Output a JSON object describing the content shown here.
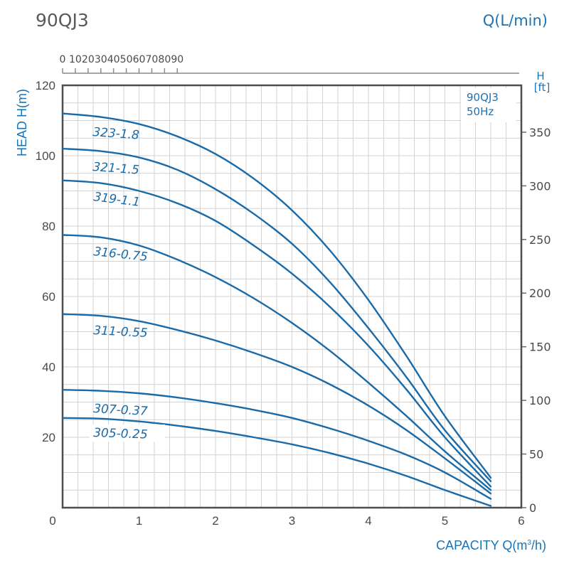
{
  "chart_data": {
    "type": "line",
    "title": "90QJ3",
    "subtitle_box": [
      "90QJ3",
      "50Hz"
    ],
    "xlabel": "CAPACITY Q(m³/h)",
    "xlabel_parts": {
      "main": "CAPACITY Q(m",
      "sup": "3",
      "end": "/h)"
    },
    "ylabel": "HEAD H(m)",
    "x2label": "Q(L/min)",
    "y2label": [
      "H",
      "[ft]"
    ],
    "xlim": [
      0,
      6
    ],
    "ylim": [
      0,
      120
    ],
    "x2lim": [
      0,
      100
    ],
    "y2lim": [
      0,
      393.7
    ],
    "x_ticks": [
      "0",
      "1",
      "2",
      "3",
      "4",
      "5",
      "6"
    ],
    "y_ticks": [
      "20",
      "40",
      "60",
      "80",
      "100",
      "120"
    ],
    "x2_ticks": [
      "0",
      "10",
      "20",
      "30",
      "40",
      "50",
      "60",
      "70",
      "80",
      "90"
    ],
    "y2_ticks": [
      "0",
      "50",
      "100",
      "150",
      "200",
      "250",
      "300",
      "350"
    ],
    "grid": true,
    "x": [
      0,
      0.5,
      1,
      1.5,
      2,
      2.5,
      3,
      3.5,
      4,
      4.5,
      5,
      5.6
    ],
    "series": [
      {
        "name": "323-1.8",
        "values": [
          112,
          111,
          109,
          105.5,
          100.5,
          93.5,
          84.5,
          73,
          59,
          43,
          26,
          8.5
        ]
      },
      {
        "name": "321-1.5",
        "values": [
          102,
          101.3,
          99.5,
          96,
          90.5,
          83.5,
          75,
          64,
          51,
          37,
          22,
          7.5
        ]
      },
      {
        "name": "319-1.1",
        "values": [
          93,
          92.2,
          90,
          86.5,
          81.5,
          74.5,
          66.5,
          57,
          46,
          33.5,
          20,
          6
        ]
      },
      {
        "name": "316-0.75",
        "values": [
          77.5,
          76.8,
          74.5,
          70.5,
          65.5,
          59.5,
          52.5,
          44.5,
          35.5,
          26,
          16,
          5
        ]
      },
      {
        "name": "311-0.55",
        "values": [
          55,
          54.5,
          53,
          50.5,
          47.5,
          44,
          40,
          35,
          29,
          22,
          14,
          4
        ]
      },
      {
        "name": "307-0.37",
        "values": [
          33.5,
          33.2,
          32.5,
          31.3,
          29.7,
          27.8,
          25.5,
          22.5,
          19,
          15,
          10,
          2.5
        ]
      },
      {
        "name": "305-0.25",
        "values": [
          25.5,
          25.3,
          24.5,
          23.3,
          21.8,
          20,
          18,
          15.5,
          12.5,
          9,
          5,
          0.5
        ]
      }
    ],
    "curve_color": "#1a6aa8",
    "legend": "top-right"
  }
}
